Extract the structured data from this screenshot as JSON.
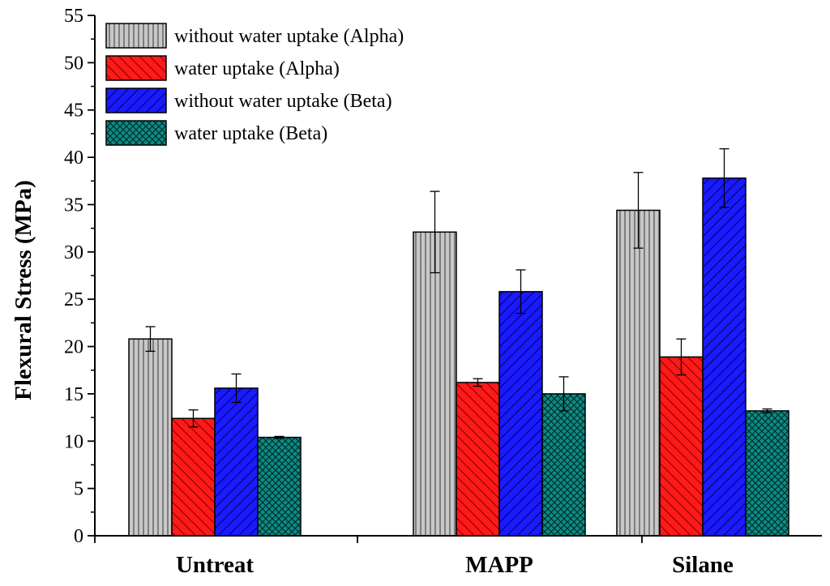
{
  "chart_data": {
    "type": "bar",
    "title": "",
    "xlabel": "",
    "ylabel": "Flexural Stress (MPa)",
    "ylim": [
      0,
      55
    ],
    "yticks": [
      0,
      5,
      10,
      15,
      20,
      25,
      30,
      35,
      40,
      45,
      50,
      55
    ],
    "categories": [
      "Untreat",
      "MAPP",
      "Silane"
    ],
    "legend_position": "top-left",
    "grid": false,
    "series": [
      {
        "name": "without water uptake (Alpha)",
        "color": "#c0c0c0",
        "pattern": "vertical-lines",
        "values": [
          20.8,
          32.1,
          34.4
        ],
        "errors": [
          1.3,
          4.3,
          4.0
        ]
      },
      {
        "name": "water uptake (Alpha)",
        "color": "#ff0000",
        "pattern": "back-diagonal",
        "values": [
          12.4,
          16.2,
          18.9
        ],
        "errors": [
          0.9,
          0.4,
          1.9
        ]
      },
      {
        "name": "without water uptake (Beta)",
        "color": "#0000ff",
        "pattern": "forward-diagonal",
        "values": [
          15.6,
          25.8,
          37.8
        ],
        "errors": [
          1.5,
          2.3,
          3.1
        ]
      },
      {
        "name": "water uptake (Beta)",
        "color": "#007f7f",
        "pattern": "crosshatch",
        "values": [
          10.4,
          15.0,
          13.2
        ],
        "errors": [
          0.1,
          1.8,
          0.2
        ]
      }
    ]
  }
}
